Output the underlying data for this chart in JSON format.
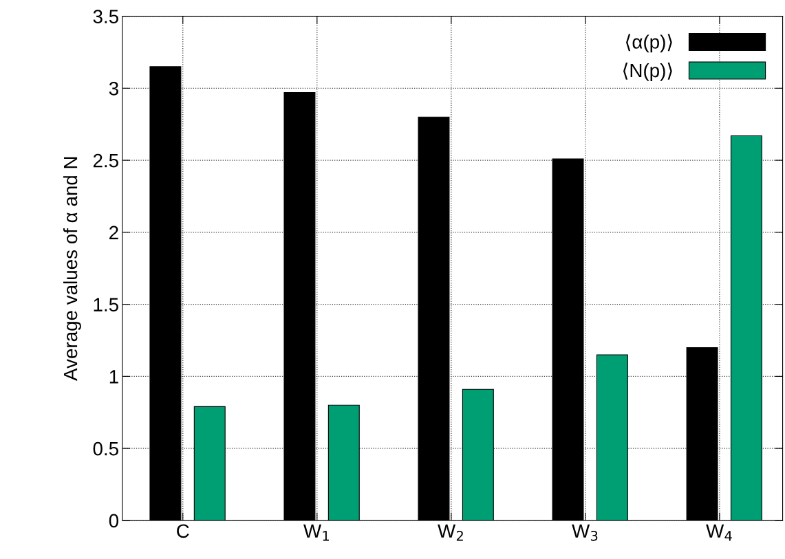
{
  "chart_data": {
    "type": "bar",
    "ylabel": "Average values of α and N",
    "categories": [
      "C",
      "W$_{1}$",
      "W$_{2}$",
      "W$_{3}$",
      "W$_{4}$"
    ],
    "series": [
      {
        "name": "⟨α(p)⟩",
        "color": "#000000",
        "values": [
          3.15,
          2.97,
          2.8,
          2.51,
          1.2
        ]
      },
      {
        "name": "⟨N(p)⟩",
        "color": "#009e73",
        "values": [
          0.79,
          0.8,
          0.91,
          1.15,
          2.67
        ]
      }
    ],
    "ylim": [
      0,
      3.5
    ],
    "yticks": [
      0,
      0.5,
      1,
      1.5,
      2,
      2.5,
      3,
      3.5
    ],
    "grid": true,
    "legend": "top right"
  }
}
